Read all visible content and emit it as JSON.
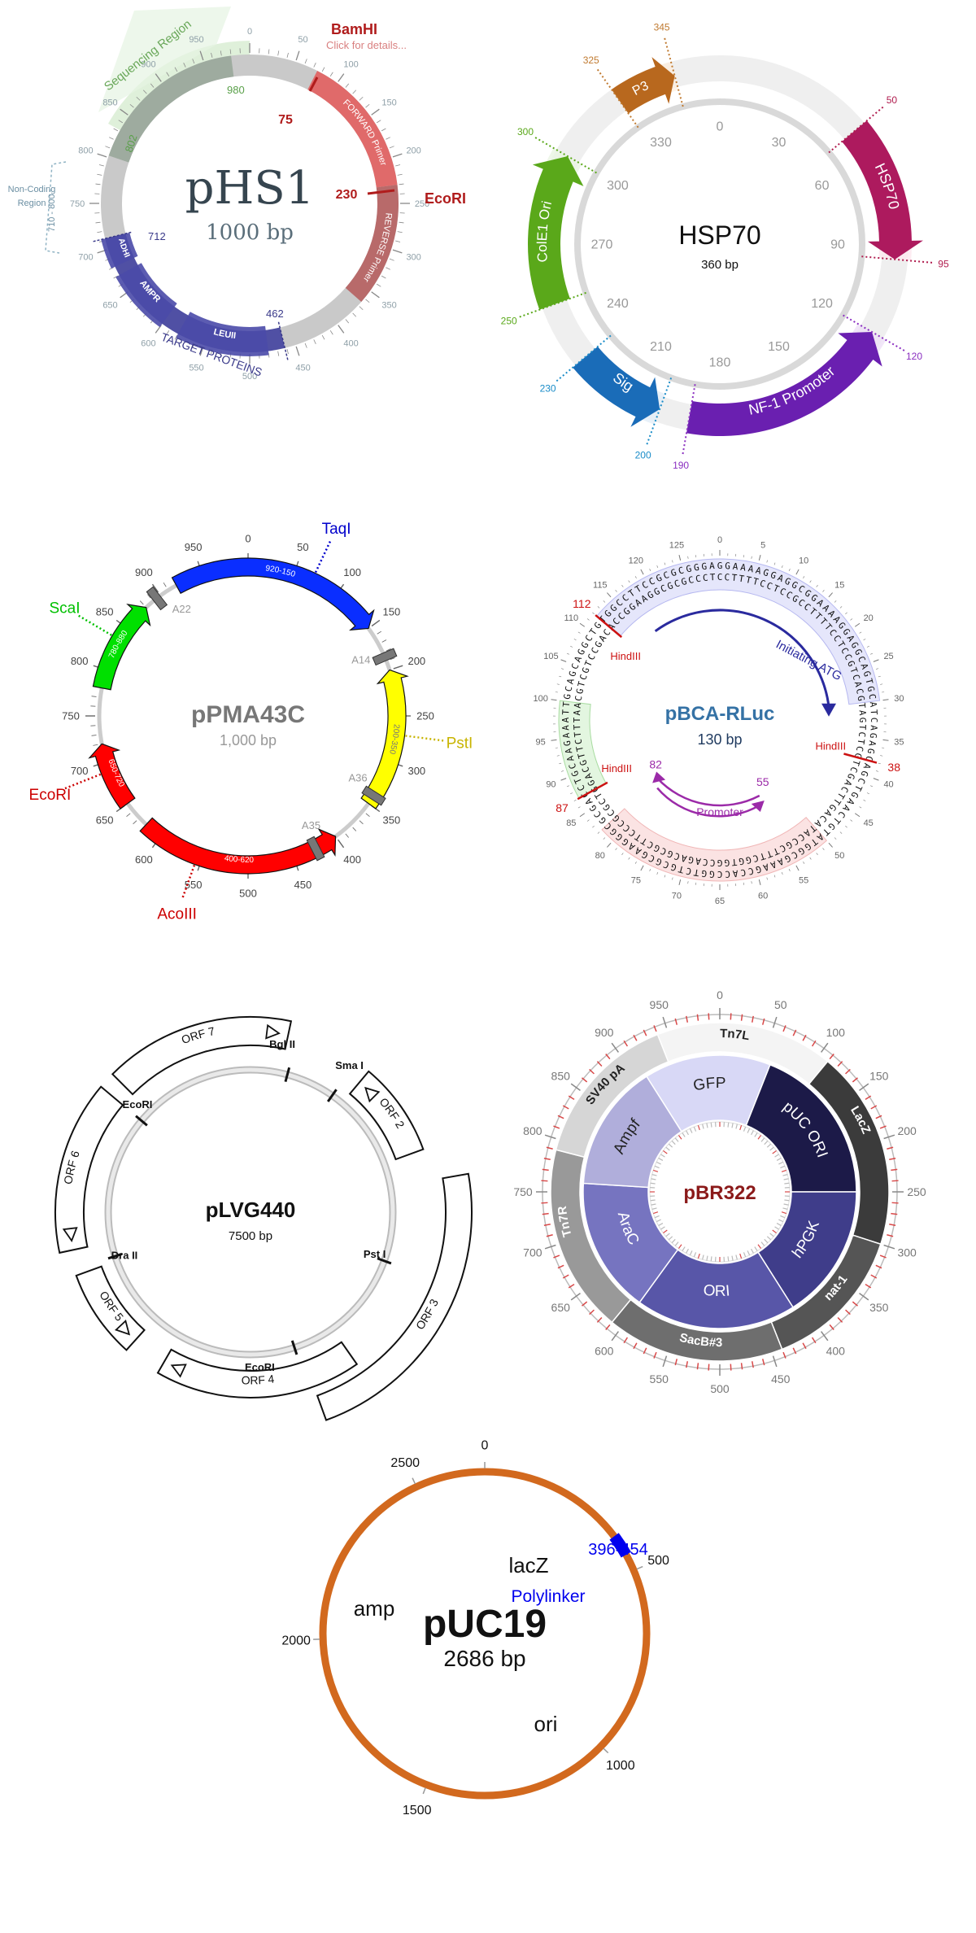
{
  "phs1": {
    "name": "pHS1",
    "size_label": "1000 bp",
    "total": 1000,
    "ticks": [
      "0",
      "50",
      "100",
      "150",
      "200",
      "250",
      "300",
      "350",
      "400",
      "450",
      "500",
      "550",
      "600",
      "650",
      "700",
      "750",
      "800",
      "850",
      "900",
      "950"
    ],
    "site_bamhi": "BamHI",
    "site_bamhi_note": "Click for details...",
    "site_ecori": "EcoRI",
    "pos_75": "75",
    "pos_230": "230",
    "pos_980": "980",
    "pos_802": "802",
    "pos_712": "712",
    "pos_462": "462",
    "feat_forward": "FORWARD Primer",
    "feat_reverse": "REVERSE Primer",
    "feat_adhi": "ADHI",
    "feat_ampr": "AMPR",
    "feat_leuii": "LEUII",
    "region_sequencing": "Sequencing Region",
    "region_target": "TARGET PROTEINS",
    "noncoding_range": "710 - 800",
    "noncoding_label": "Non-Coding Region"
  },
  "hsp70": {
    "name": "HSP70",
    "size_label": "360 bp",
    "total": 360,
    "inner_ticks": [
      "0",
      "30",
      "60",
      "90",
      "120",
      "150",
      "180",
      "210",
      "240",
      "270",
      "300",
      "330"
    ],
    "feat_p3": "P3",
    "feat_hsp70": "HSP70",
    "feat_nf1": "NF-1 Promoter",
    "feat_sig": "Sig",
    "feat_cole1": "ColE1 Ori",
    "pos": [
      "325",
      "345",
      "50",
      "95",
      "120",
      "190",
      "200",
      "230",
      "250",
      "300"
    ]
  },
  "ppma43c": {
    "name": "pPMA43C",
    "size_label": "1,000 bp",
    "total": 1000,
    "ticks": [
      "0",
      "50",
      "100",
      "150",
      "200",
      "250",
      "300",
      "350",
      "400",
      "450",
      "500",
      "550",
      "600",
      "650",
      "700",
      "750",
      "800",
      "850",
      "900",
      "950"
    ],
    "feat_1": "920-150",
    "feat_2": "200-350",
    "feat_3": "400-620",
    "feat_4": "650-720",
    "feat_5": "780-880",
    "marker_a14": "A14",
    "marker_a36": "A36",
    "marker_a35": "A35",
    "marker_a22": "A22",
    "site_taqi": "TaqI",
    "site_psti": "PstI",
    "site_acoiii": "AcoIII",
    "site_ecori": "EcoRI",
    "site_scai": "ScaI"
  },
  "pbca": {
    "name": "pBCA-RLuc",
    "size_label": "130 bp",
    "total": 130,
    "ticks": [
      "0",
      "5",
      "10",
      "15",
      "20",
      "25",
      "30",
      "35",
      "40",
      "45",
      "50",
      "55",
      "60",
      "65",
      "70",
      "75",
      "80",
      "85",
      "90",
      "95",
      "100",
      "105",
      "110",
      "115",
      "120",
      "125"
    ],
    "seq_outer": "GGAAAAGGAGGCGGAAAAGGAGGCAGTGCATCAGAGCAGCTGAACTGTATGGCGAAAGCCACCGGTCTGCGCGAAGGGCGCGACCTGCAAGAAATTGCAGCAGGCTGTGGCCTTCCGCGCGGGA",
    "seq_inner": "CCTTTTCCTCCGCCTTTTCCTCCGTCACGTAGTCTCGTCGACTTGACATACCGCTTTCGGTGGCCAGACGCGCTTCCCGCGCTGGACGTTCTTTAACGTCGTCCGACACCGGAAGGCGCGCCCT",
    "feat_atg": "Initiating ATG",
    "feat_promoter": "Promoter",
    "site_hindiii": "HindIII",
    "pos_112": "112",
    "pos_38": "38",
    "pos_87": "87",
    "pos_82": "82",
    "pos_55": "55"
  },
  "plvg": {
    "name": "pLVG440",
    "size_label": "7500 bp",
    "orfs": [
      "ORF 2",
      "ORF 3",
      "ORF 4",
      "ORF 5",
      "ORF 6",
      "ORF 7"
    ],
    "site_bglii": "Bgl II",
    "site_smai": "Sma I",
    "site_psti": "Pst I",
    "site_ecori_1": "EcoRI",
    "site_dra": "Dra II",
    "site_ecori_2": "EcoRI"
  },
  "pbr322": {
    "name": "pBR322",
    "total": 1000,
    "ticks": [
      "0",
      "50",
      "100",
      "150",
      "200",
      "250",
      "300",
      "350",
      "400",
      "450",
      "500",
      "550",
      "600",
      "650",
      "700",
      "750",
      "800",
      "850",
      "900",
      "950"
    ],
    "outer": [
      "Tn7L",
      "LacZ",
      "nat-1",
      "SacB#3",
      "Tn7R",
      "SV40 pA"
    ],
    "inner": [
      "GFP",
      "pUC ORI",
      "hPGK",
      "ORI",
      "AraC",
      "Ampf"
    ],
    "colors": {
      "dark": "#111111",
      "accent": "#8b1a1a"
    }
  },
  "puc19": {
    "name": "pUC19",
    "size_label": "2686 bp",
    "total": 2686,
    "ticks": [
      "0",
      "500",
      "1000",
      "1500",
      "2000",
      "2500"
    ],
    "feat_lacz": "lacZ",
    "feat_amp": "amp",
    "feat_ori": "ori",
    "feat_polylinker": "Polylinker",
    "feat_range": "396-454",
    "colors": {
      "ring": "#d2691e",
      "polylinker": "#0000ee"
    }
  }
}
